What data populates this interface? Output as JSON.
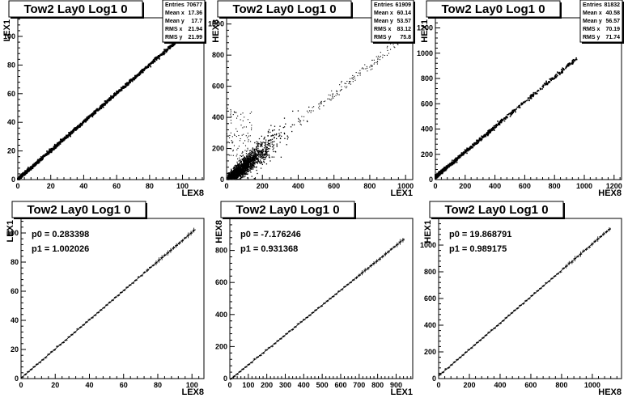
{
  "chart_data": [
    {
      "type": "scatter",
      "title": "Tow2 Lay0 Log1 0",
      "xlabel": "LEX8",
      "ylabel": "LEX1",
      "xlim": [
        0,
        113
      ],
      "ylim": [
        0,
        113
      ],
      "xticks": [
        0,
        20,
        40,
        60,
        80,
        100
      ],
      "yticks": [
        0,
        20,
        40,
        60,
        80,
        100
      ],
      "stats": [
        {
          "label": "Entries",
          "value": "70677"
        },
        {
          "label": "Mean x",
          "value": "17.36"
        },
        {
          "label": "Mean y",
          "value": "17.7"
        },
        {
          "label": "RMS x",
          "value": "21.94"
        },
        {
          "label": "RMS y",
          "value": "21.99"
        }
      ],
      "fit": {
        "slope": 1.0,
        "intercept": 0.28
      },
      "x_range": [
        0,
        100
      ]
    },
    {
      "type": "scatter",
      "title": "Tow2 Lay0 Log1 0",
      "xlabel": "LEX1",
      "ylabel": "HEX8",
      "xlim": [
        0,
        1040
      ],
      "ylim": [
        0,
        1040
      ],
      "xticks": [
        0,
        200,
        400,
        600,
        800,
        1000
      ],
      "yticks": [
        0,
        200,
        400,
        600,
        800,
        1000
      ],
      "stats": [
        {
          "label": "Entries",
          "value": "61909"
        },
        {
          "label": "Mean x",
          "value": "60.14"
        },
        {
          "label": "Mean y",
          "value": "53.57"
        },
        {
          "label": "RMS x",
          "value": "83.12"
        },
        {
          "label": "RMS y",
          "value": "75.8"
        }
      ],
      "fit": {
        "slope": 0.93,
        "intercept": -7.2
      },
      "x_range": [
        0,
        960
      ]
    },
    {
      "type": "scatter",
      "title": "Tow2 Lay0 Log1 0",
      "xlabel": "HEX8",
      "ylabel": "HEX1",
      "xlim": [
        0,
        1250
      ],
      "ylim": [
        0,
        1280
      ],
      "xticks": [
        0,
        200,
        400,
        600,
        800,
        1000,
        1200
      ],
      "yticks": [
        0,
        200,
        400,
        600,
        800,
        1000,
        1200
      ],
      "stats": [
        {
          "label": "Entries",
          "value": "81832"
        },
        {
          "label": "Mean x",
          "value": "40.58"
        },
        {
          "label": "Mean y",
          "value": "56.57"
        },
        {
          "label": "RMS x",
          "value": "70.19"
        },
        {
          "label": "RMS y",
          "value": "71.74"
        }
      ],
      "fit": {
        "slope": 0.99,
        "intercept": 19.9
      },
      "x_range": [
        0,
        950
      ]
    },
    {
      "type": "line",
      "title": "Tow2 Lay0 Log1 0",
      "xlabel": "LEX8",
      "ylabel": "LEX1",
      "xlim": [
        0,
        107
      ],
      "ylim": [
        0,
        110
      ],
      "xticks": [
        0,
        20,
        40,
        60,
        80,
        100
      ],
      "yticks": [
        0,
        20,
        40,
        60,
        80,
        100
      ],
      "fit_params": [
        {
          "label": "p0",
          "value": "0.283398"
        },
        {
          "label": "p1",
          "value": "1.002026"
        }
      ],
      "fit": {
        "slope": 1.002026,
        "intercept": 0.283398
      },
      "x_range": [
        0,
        102
      ]
    },
    {
      "type": "line",
      "title": "Tow2 Lay0 Log1 0",
      "xlabel": "LEX1",
      "ylabel": "HEX8",
      "xlim": [
        0,
        990
      ],
      "ylim": [
        0,
        1000
      ],
      "xticks": [
        0,
        100,
        200,
        300,
        400,
        500,
        600,
        700,
        800,
        900
      ],
      "yticks": [
        0,
        200,
        400,
        600,
        800
      ],
      "fit_params": [
        {
          "label": "p0",
          "value": "-7.176246"
        },
        {
          "label": "p1",
          "value": "0.931368"
        }
      ],
      "fit": {
        "slope": 0.931368,
        "intercept": -7.176246
      },
      "x_range": [
        0,
        945
      ]
    },
    {
      "type": "line",
      "title": "Tow2 Lay0 Log1 0",
      "xlabel": "HEX8",
      "ylabel": "HEX1",
      "xlim": [
        0,
        1190
      ],
      "ylim": [
        0,
        1200
      ],
      "xticks": [
        0,
        200,
        400,
        600,
        800,
        1000
      ],
      "yticks": [
        0,
        200,
        400,
        600,
        800,
        1000
      ],
      "fit_params": [
        {
          "label": "p0",
          "value": "19.868791"
        },
        {
          "label": "p1",
          "value": "0.989175"
        }
      ],
      "fit": {
        "slope": 0.989175,
        "intercept": 19.868791
      },
      "x_range": [
        0,
        1120
      ]
    }
  ]
}
